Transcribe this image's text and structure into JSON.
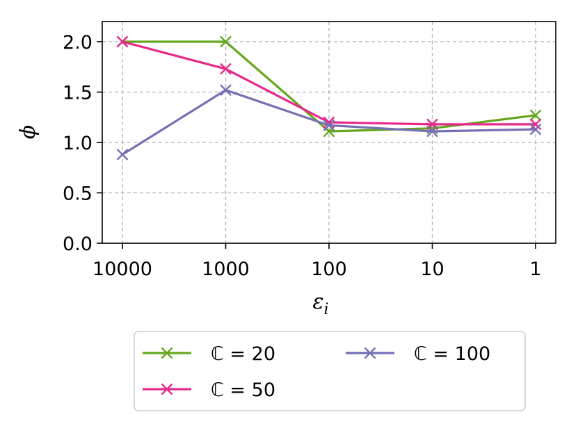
{
  "chart_data": {
    "type": "line",
    "title": "",
    "xlabel": "ε",
    "xlabel_sub": "i",
    "ylabel": "ϕ",
    "categories": [
      "10000",
      "1000",
      "100",
      "10",
      "1"
    ],
    "ylim": [
      0,
      2.2
    ],
    "yticks": [
      "0.0",
      "0.5",
      "1.0",
      "1.5",
      "2.0"
    ],
    "grid": true,
    "legend_placement": "below",
    "series": [
      {
        "name": "ℂ = 20",
        "color": "#66a61e",
        "marker": "x",
        "values": [
          2.0,
          2.0,
          1.11,
          1.14,
          1.27
        ]
      },
      {
        "name": "ℂ = 50",
        "color": "#e7298a",
        "marker": "x",
        "values": [
          2.0,
          1.73,
          1.2,
          1.18,
          1.18
        ]
      },
      {
        "name": "ℂ = 100",
        "color": "#7570b3",
        "marker": "x",
        "values": [
          0.88,
          1.52,
          1.17,
          1.11,
          1.13
        ]
      }
    ]
  }
}
